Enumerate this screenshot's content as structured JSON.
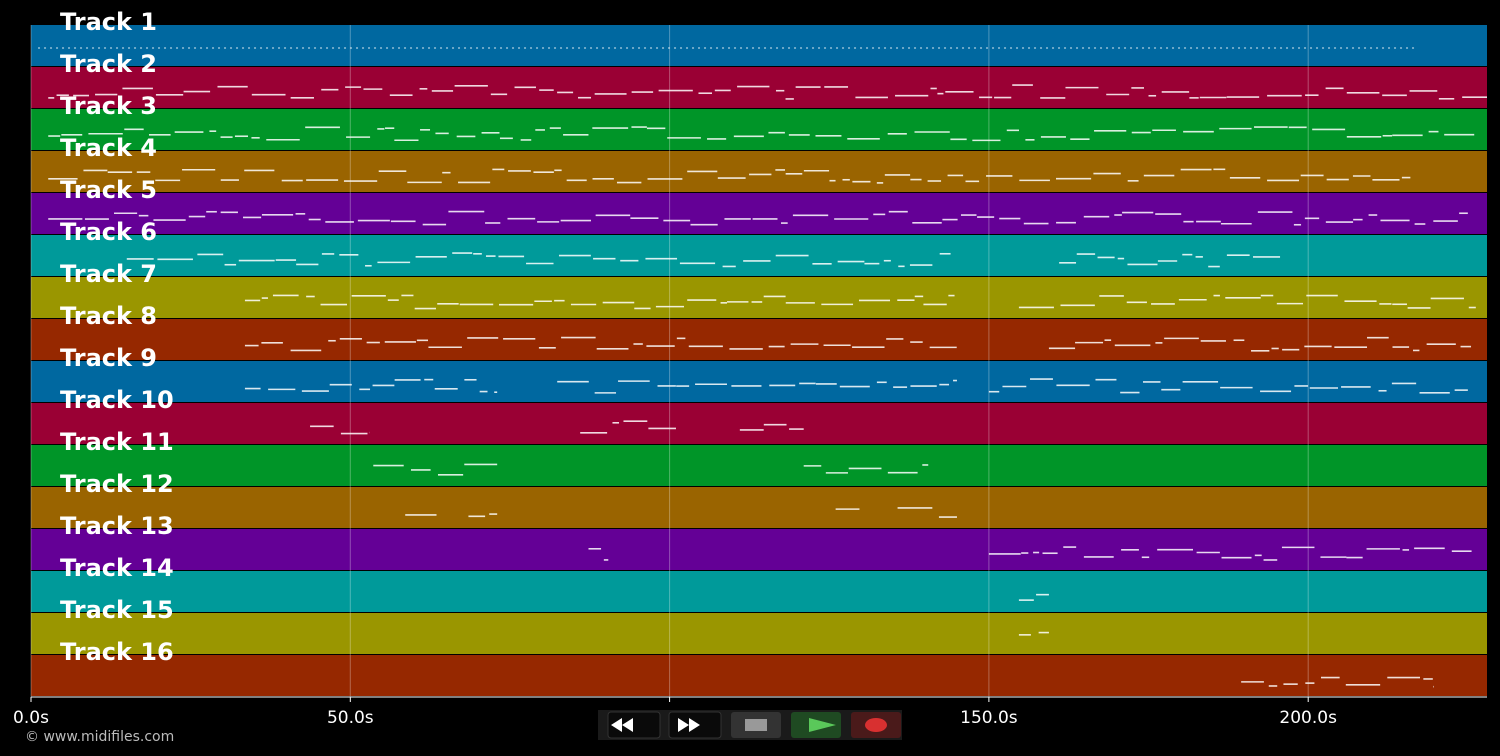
{
  "chart_data": {
    "type": "piano-roll",
    "xlim": [
      0,
      228
    ],
    "xticks": [
      {
        "value": 0,
        "label": "0.0s"
      },
      {
        "value": 50,
        "label": "50.0s"
      },
      {
        "value": 100,
        "label": "100.0s"
      },
      {
        "value": 150,
        "label": "150.0s"
      },
      {
        "value": 200,
        "label": "200.0s"
      }
    ],
    "grid": true,
    "tracks": [
      {
        "name": "Track 1",
        "color": "#0068a0",
        "segments": [
          [
            1.1,
            217
          ]
        ]
      },
      {
        "name": "Track 2",
        "color": "#9a0034",
        "segments": [
          [
            2.7,
            228
          ]
        ]
      },
      {
        "name": "Track 3",
        "color": "#009528",
        "segments": [
          [
            2.7,
            226
          ]
        ]
      },
      {
        "name": "Track 4",
        "color": "#9a6400",
        "segments": [
          [
            2.7,
            216
          ]
        ]
      },
      {
        "name": "Track 5",
        "color": "#640096",
        "segments": [
          [
            2.7,
            225
          ]
        ]
      },
      {
        "name": "Track 6",
        "color": "#009a9a",
        "segments": [
          [
            15,
            144
          ],
          [
            161,
            196
          ]
        ]
      },
      {
        "name": "Track 7",
        "color": "#9a9600",
        "segments": [
          [
            33.5,
            145
          ],
          [
            154.7,
            226.5
          ]
        ]
      },
      {
        "name": "Track 8",
        "color": "#962800",
        "segments": [
          [
            33.5,
            145
          ],
          [
            159.4,
            225.5
          ]
        ]
      },
      {
        "name": "Track 9",
        "color": "#0068a0",
        "segments": [
          [
            33.5,
            73
          ],
          [
            82.4,
            145
          ],
          [
            150,
            225
          ]
        ]
      },
      {
        "name": "Track 10",
        "color": "#9a0034",
        "segments": [
          [
            43.7,
            53
          ],
          [
            86,
            101
          ],
          [
            111,
            121
          ]
        ]
      },
      {
        "name": "Track 11",
        "color": "#009528",
        "segments": [
          [
            53.6,
            73
          ],
          [
            121,
            140.5
          ]
        ]
      },
      {
        "name": "Track 12",
        "color": "#9a6400",
        "segments": [
          [
            58.6,
            63.5
          ],
          [
            68.5,
            73
          ],
          [
            126,
            130.5
          ],
          [
            135.7,
            145
          ]
        ]
      },
      {
        "name": "Track 13",
        "color": "#640096",
        "segments": [
          [
            87.3,
            90.4
          ],
          [
            150,
            226
          ]
        ]
      },
      {
        "name": "Track 14",
        "color": "#009a9a",
        "segments": [
          [
            154.7,
            159.4
          ]
        ]
      },
      {
        "name": "Track 15",
        "color": "#9a9600",
        "segments": [
          [
            154.7,
            159.4
          ]
        ]
      },
      {
        "name": "Track 16",
        "color": "#962800",
        "segments": [
          [
            189.5,
            219.7
          ]
        ]
      }
    ]
  },
  "footer": "© www.midifiles.com"
}
